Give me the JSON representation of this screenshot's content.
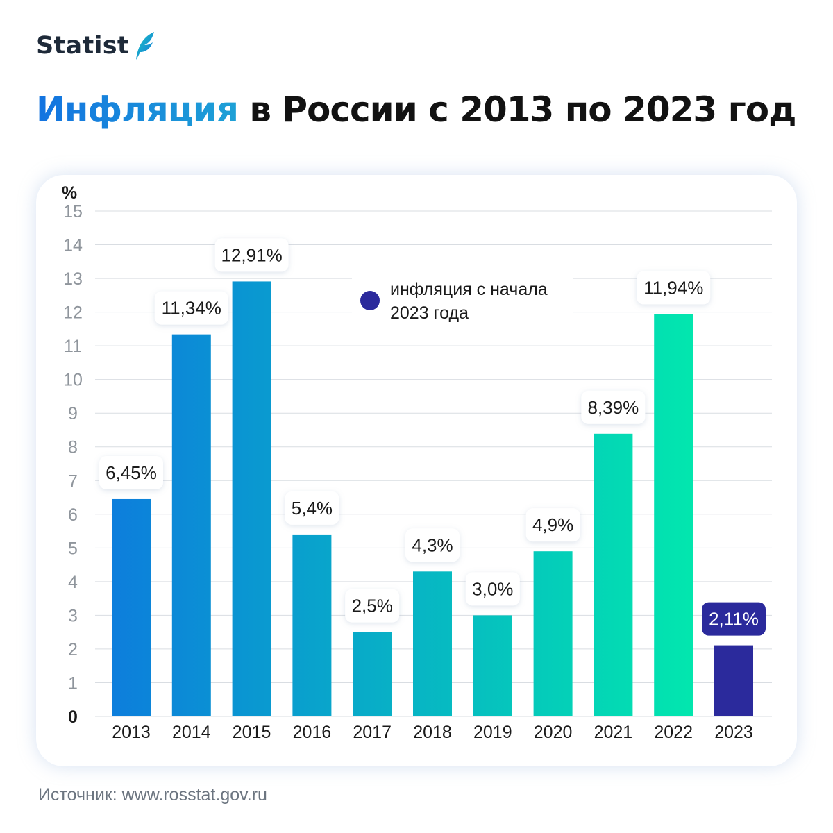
{
  "brand": {
    "name": "Statist"
  },
  "header": {
    "title_accent": "Инфляция",
    "title_rest": " в России с 2013 по 2023 год"
  },
  "footer": {
    "source": "Источник: www.rosstat.gov.ru"
  },
  "colors": {
    "bar_gradient_start": "#0d7edc",
    "bar_gradient_end": "#00f5a8",
    "highlight": "#2b2a9c",
    "grid": "#d9dde2",
    "tick_text": "#8f959c",
    "text": "#1a1a1a"
  },
  "chart_data": {
    "type": "bar",
    "categories": [
      "2013",
      "2014",
      "2015",
      "2016",
      "2017",
      "2018",
      "2019",
      "2020",
      "2021",
      "2022",
      "2023"
    ],
    "values": [
      6.45,
      11.34,
      12.91,
      5.4,
      2.5,
      4.3,
      3.0,
      4.9,
      8.39,
      11.94,
      2.11
    ],
    "data_labels": [
      "6,45%",
      "11,34%",
      "12,91%",
      "5,4%",
      "2,5%",
      "4,3%",
      "3,0%",
      "4,9%",
      "8,39%",
      "11,94%",
      "2,11%"
    ],
    "highlight_index": 10,
    "ylabel": "%",
    "ylim": [
      0,
      15
    ],
    "yticks": [
      "0",
      "1",
      "2",
      "3",
      "4",
      "5",
      "6",
      "7",
      "8",
      "9",
      "10",
      "11",
      "12",
      "13",
      "14",
      "15"
    ],
    "grid": true,
    "legend": {
      "position": "top-center",
      "entries": [
        {
          "line1": "инфляция с начала",
          "line2": "2023 года",
          "color": "#2b2a9c"
        }
      ]
    }
  }
}
